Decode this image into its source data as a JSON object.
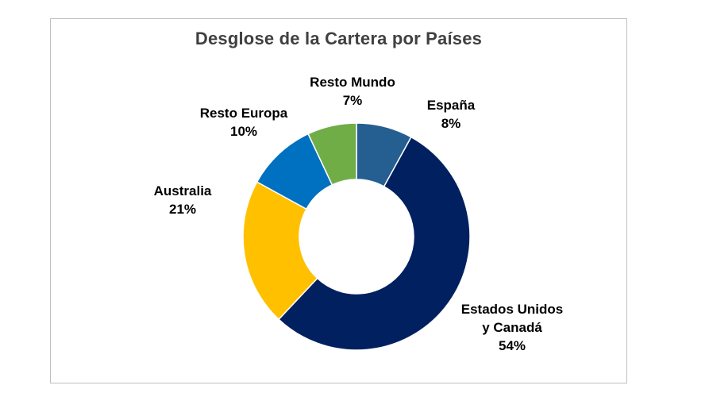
{
  "chart_data": {
    "type": "pie",
    "variant": "donut",
    "title": "Desglose de la Cartera por Países",
    "grid": false,
    "legend": "none",
    "slices": [
      {
        "label": "España",
        "label_lines": [
          "España"
        ],
        "value": 8,
        "display": "8%",
        "color": "#255e91"
      },
      {
        "label": "Estados Unidos y Canadá",
        "label_lines": [
          "Estados Unidos",
          "y Canadá"
        ],
        "value": 54,
        "display": "54%",
        "color": "#002060"
      },
      {
        "label": "Australia",
        "label_lines": [
          "Australia"
        ],
        "value": 21,
        "display": "21%",
        "color": "#ffc000"
      },
      {
        "label": "Resto Europa",
        "label_lines": [
          "Resto Europa"
        ],
        "value": 10,
        "display": "10%",
        "color": "#0070c0"
      },
      {
        "label": "Resto Mundo",
        "label_lines": [
          "Resto Mundo"
        ],
        "value": 7,
        "display": "7%",
        "color": "#70ad47"
      }
    ]
  }
}
